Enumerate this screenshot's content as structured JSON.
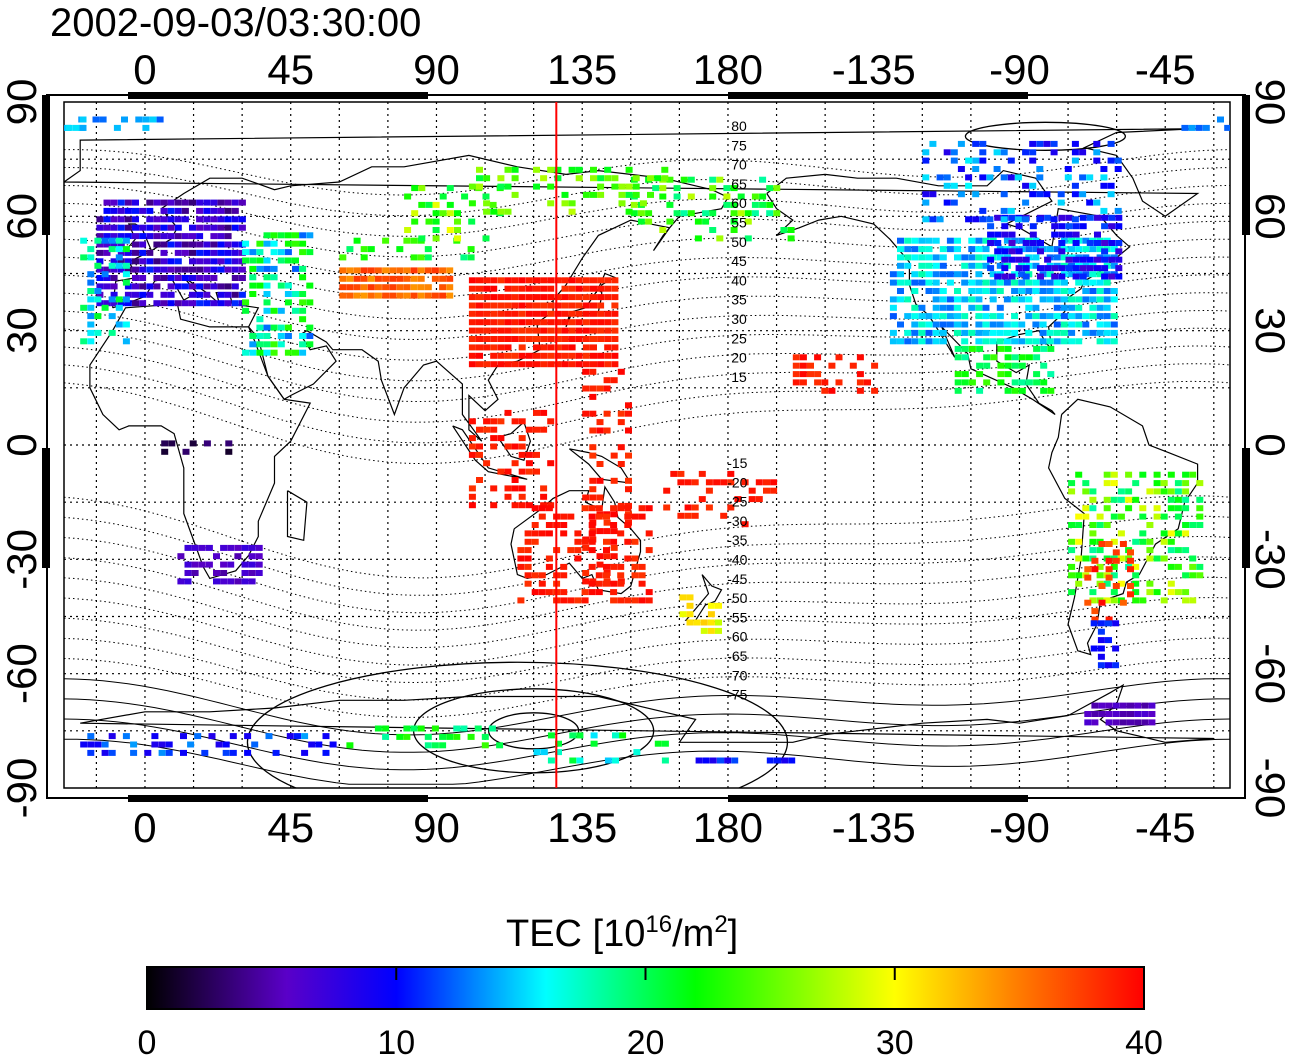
{
  "title": "2002-09-03/03:30:00",
  "top_axis_labels": [
    "0",
    "45",
    "90",
    "135",
    "180",
    "-135",
    "-90",
    "-45"
  ],
  "bottom_axis_labels": [
    "0",
    "45",
    "90",
    "135",
    "180",
    "-135",
    "-90",
    "-45"
  ],
  "left_axis_labels": [
    "90",
    "60",
    "30",
    "0",
    "-30",
    "-60",
    "-90"
  ],
  "right_axis_labels": [
    "90",
    "60",
    "30",
    "0",
    "-30",
    "-60",
    "-90"
  ],
  "contour_labels_north": [
    "80",
    "75",
    "70",
    "65",
    "60",
    "55",
    "50",
    "45",
    "40",
    "35",
    "30",
    "25",
    "20",
    "15"
  ],
  "contour_labels_south": [
    "-15",
    "-20",
    "-25",
    "-30",
    "-35",
    "-40",
    "-45",
    "-50",
    "-55",
    "-60",
    "-65",
    "-70",
    "-75"
  ],
  "colorbar": {
    "label_main": "TEC  [10",
    "label_sup1": "16",
    "label_mid": "/m",
    "label_sup2": "2",
    "label_end": "]",
    "tick_labels": [
      "0",
      "10",
      "20",
      "30",
      "40"
    ],
    "colors": [
      "#000000",
      "#5a00c8",
      "#0000ff",
      "#00ffff",
      "#00ff00",
      "#ffff00",
      "#ff8000",
      "#ff0000"
    ]
  },
  "map": {
    "meridian_line_longitude": 127,
    "meridian_line_color": "#ff0000",
    "lon_range_deg": [
      -25,
      335
    ],
    "lat_range_deg": [
      -90,
      90
    ]
  }
}
